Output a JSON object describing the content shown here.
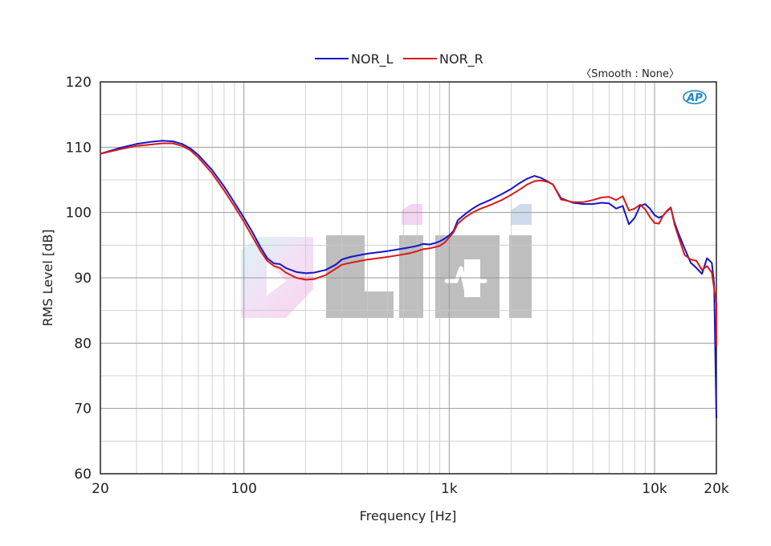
{
  "chart_data": {
    "type": "line",
    "title": "",
    "xlabel": "Frequency [Hz]",
    "ylabel": "RMS Level [dB]",
    "x_scale": "log",
    "xlim": [
      20,
      20000
    ],
    "ylim": [
      60,
      120
    ],
    "x_ticks": [
      {
        "value": 20,
        "label": "20"
      },
      {
        "value": 100,
        "label": "100"
      },
      {
        "value": 1000,
        "label": "1k"
      },
      {
        "value": 10000,
        "label": "10k"
      },
      {
        "value": 20000,
        "label": "20k"
      }
    ],
    "y_ticks": [
      60,
      70,
      80,
      90,
      100,
      110,
      120
    ],
    "grid": true,
    "legend_position": "top-center",
    "note": "〈Smooth : None〉",
    "logo": "AP",
    "watermark": "DCiHi",
    "series": [
      {
        "name": "NOR_L",
        "color": "#1515c8",
        "points": [
          [
            20,
            109
          ],
          [
            25,
            109.9
          ],
          [
            30,
            110.5
          ],
          [
            35,
            110.8
          ],
          [
            40,
            111
          ],
          [
            45,
            110.9
          ],
          [
            50,
            110.5
          ],
          [
            55,
            109.8
          ],
          [
            60,
            108.8
          ],
          [
            70,
            106.5
          ],
          [
            80,
            104
          ],
          [
            90,
            101.5
          ],
          [
            100,
            99.2
          ],
          [
            110,
            97
          ],
          [
            120,
            94.8
          ],
          [
            130,
            93
          ],
          [
            140,
            92.2
          ],
          [
            150,
            92.1
          ],
          [
            160,
            91.5
          ],
          [
            180,
            90.9
          ],
          [
            200,
            90.7
          ],
          [
            220,
            90.8
          ],
          [
            250,
            91.2
          ],
          [
            280,
            92
          ],
          [
            300,
            92.8
          ],
          [
            330,
            93.2
          ],
          [
            370,
            93.5
          ],
          [
            400,
            93.7
          ],
          [
            450,
            93.9
          ],
          [
            500,
            94.1
          ],
          [
            550,
            94.3
          ],
          [
            600,
            94.5
          ],
          [
            650,
            94.7
          ],
          [
            700,
            94.9
          ],
          [
            750,
            95.2
          ],
          [
            800,
            95.1
          ],
          [
            850,
            95.3
          ],
          [
            900,
            95.6
          ],
          [
            950,
            96
          ],
          [
            1000,
            96.5
          ],
          [
            1050,
            97.2
          ],
          [
            1100,
            98.8
          ],
          [
            1200,
            99.8
          ],
          [
            1300,
            100.6
          ],
          [
            1400,
            101.2
          ],
          [
            1600,
            102
          ],
          [
            1800,
            102.8
          ],
          [
            2000,
            103.6
          ],
          [
            2200,
            104.5
          ],
          [
            2400,
            105.2
          ],
          [
            2600,
            105.6
          ],
          [
            2800,
            105.3
          ],
          [
            3000,
            104.8
          ],
          [
            3200,
            104.3
          ],
          [
            3500,
            102.2
          ],
          [
            4000,
            101.5
          ],
          [
            4500,
            101.3
          ],
          [
            5000,
            101.3
          ],
          [
            5500,
            101.5
          ],
          [
            6000,
            101.4
          ],
          [
            6500,
            100.6
          ],
          [
            7000,
            101
          ],
          [
            7500,
            98.2
          ],
          [
            8000,
            99.2
          ],
          [
            8500,
            101
          ],
          [
            9000,
            101.3
          ],
          [
            9500,
            100.6
          ],
          [
            10000,
            99.6
          ],
          [
            10500,
            99.2
          ],
          [
            11000,
            99.5
          ],
          [
            11500,
            100.2
          ],
          [
            12000,
            100.7
          ],
          [
            12500,
            98.5
          ],
          [
            13000,
            97
          ],
          [
            14000,
            94.5
          ],
          [
            15000,
            92.3
          ],
          [
            16000,
            91.5
          ],
          [
            17000,
            90.6
          ],
          [
            18000,
            93
          ],
          [
            19000,
            92.3
          ],
          [
            19500,
            89
          ],
          [
            20000,
            68.5
          ]
        ]
      },
      {
        "name": "NOR_R",
        "color": "#d81818",
        "points": [
          [
            20,
            109
          ],
          [
            25,
            109.7
          ],
          [
            30,
            110.2
          ],
          [
            35,
            110.4
          ],
          [
            40,
            110.6
          ],
          [
            45,
            110.6
          ],
          [
            50,
            110.2
          ],
          [
            55,
            109.5
          ],
          [
            60,
            108.4
          ],
          [
            70,
            106
          ],
          [
            80,
            103.4
          ],
          [
            90,
            100.9
          ],
          [
            100,
            98.6
          ],
          [
            110,
            96.3
          ],
          [
            120,
            94.2
          ],
          [
            130,
            92.6
          ],
          [
            140,
            91.8
          ],
          [
            150,
            91.5
          ],
          [
            160,
            90.8
          ],
          [
            180,
            90
          ],
          [
            200,
            89.7
          ],
          [
            220,
            89.8
          ],
          [
            250,
            90.4
          ],
          [
            280,
            91.4
          ],
          [
            300,
            92
          ],
          [
            330,
            92.3
          ],
          [
            370,
            92.6
          ],
          [
            400,
            92.8
          ],
          [
            450,
            93
          ],
          [
            500,
            93.2
          ],
          [
            550,
            93.4
          ],
          [
            600,
            93.6
          ],
          [
            650,
            93.8
          ],
          [
            700,
            94.1
          ],
          [
            750,
            94.4
          ],
          [
            800,
            94.5
          ],
          [
            850,
            94.7
          ],
          [
            900,
            94.9
          ],
          [
            950,
            95.4
          ],
          [
            1000,
            96.2
          ],
          [
            1050,
            97
          ],
          [
            1100,
            98.3
          ],
          [
            1200,
            99.3
          ],
          [
            1300,
            100
          ],
          [
            1400,
            100.5
          ],
          [
            1600,
            101.2
          ],
          [
            1800,
            101.9
          ],
          [
            2000,
            102.7
          ],
          [
            2200,
            103.5
          ],
          [
            2400,
            104.3
          ],
          [
            2600,
            104.8
          ],
          [
            2800,
            104.9
          ],
          [
            3000,
            104.7
          ],
          [
            3200,
            104.3
          ],
          [
            3500,
            102
          ],
          [
            4000,
            101.6
          ],
          [
            4500,
            101.6
          ],
          [
            5000,
            101.9
          ],
          [
            5500,
            102.3
          ],
          [
            6000,
            102.4
          ],
          [
            6500,
            101.9
          ],
          [
            7000,
            102.5
          ],
          [
            7500,
            100.3
          ],
          [
            8000,
            100.6
          ],
          [
            8500,
            101.2
          ],
          [
            9000,
            100.5
          ],
          [
            9500,
            99.3
          ],
          [
            10000,
            98.4
          ],
          [
            10500,
            98.3
          ],
          [
            11000,
            99.5
          ],
          [
            11500,
            100.3
          ],
          [
            12000,
            100.8
          ],
          [
            12500,
            98.2
          ],
          [
            13000,
            96.5
          ],
          [
            14000,
            93.5
          ],
          [
            15000,
            92.8
          ],
          [
            16000,
            92.6
          ],
          [
            17000,
            91.2
          ],
          [
            18000,
            91.8
          ],
          [
            19000,
            90.8
          ],
          [
            20000,
            86
          ],
          [
            20000,
            79.5
          ]
        ]
      }
    ]
  }
}
